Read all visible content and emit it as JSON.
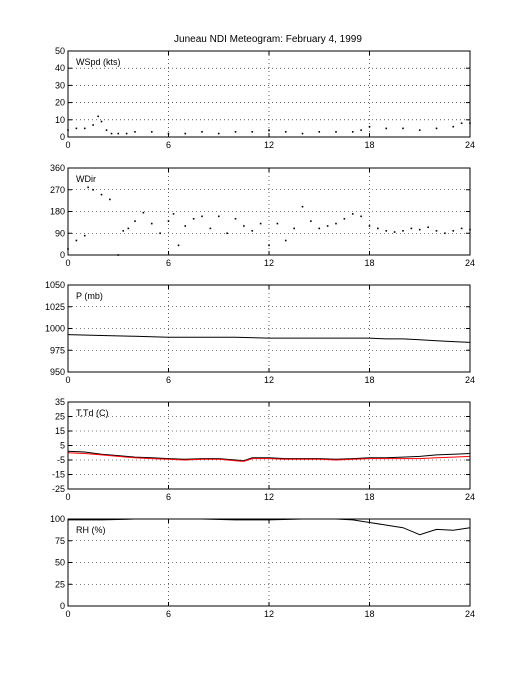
{
  "title": "Juneau NDI Meteogram:  February  4, 1999",
  "x_ticks": [
    "0",
    "6",
    "12",
    "18",
    "24"
  ],
  "chart_data": [
    {
      "type": "scatter",
      "label": "WSpd (kts)",
      "xlim": [
        0,
        24
      ],
      "ylim": [
        0,
        50
      ],
      "yticks": [
        0,
        10,
        20,
        30,
        40,
        50
      ],
      "grid": true,
      "series": [
        {
          "color": "#000000",
          "x": [
            0,
            0.5,
            1,
            1.5,
            1.8,
            2,
            2.3,
            2.6,
            3,
            3.5,
            4,
            5,
            6,
            7,
            8,
            9,
            10,
            11,
            12,
            13,
            14,
            15,
            16,
            17,
            17.5,
            18,
            19,
            20,
            21,
            22,
            23,
            23.5,
            24
          ],
          "y": [
            4,
            5,
            5,
            7,
            12,
            9,
            4,
            2,
            2,
            2,
            3,
            3,
            2,
            2,
            3,
            2,
            3,
            3,
            4,
            3,
            2,
            3,
            3,
            3,
            4,
            6,
            5,
            5,
            4,
            5,
            6,
            8,
            8
          ]
        }
      ]
    },
    {
      "type": "scatter",
      "label": "WDir",
      "xlim": [
        0,
        24
      ],
      "ylim": [
        0,
        360
      ],
      "yticks": [
        0,
        90,
        180,
        270,
        360
      ],
      "grid": true,
      "series": [
        {
          "color": "#000000",
          "x": [
            0,
            0.5,
            1,
            1.2,
            1.5,
            2,
            2.5,
            3,
            3.3,
            3.6,
            4,
            4.5,
            5,
            5.5,
            6,
            6.3,
            6.6,
            7,
            7.5,
            8,
            8.5,
            9,
            9.5,
            10,
            10.5,
            11,
            11.5,
            12,
            12.5,
            13,
            13.5,
            14,
            14.5,
            15,
            15.5,
            16,
            16.5,
            17,
            17.5,
            18,
            18.5,
            19,
            19.5,
            20,
            20.5,
            21,
            21.5,
            22,
            22.5,
            23,
            23.5,
            24
          ],
          "y": [
            25,
            60,
            80,
            280,
            270,
            250,
            230,
            0,
            100,
            110,
            140,
            175,
            130,
            90,
            140,
            170,
            40,
            120,
            150,
            160,
            110,
            160,
            90,
            150,
            120,
            100,
            130,
            40,
            130,
            60,
            110,
            200,
            140,
            110,
            120,
            130,
            150,
            170,
            160,
            120,
            110,
            100,
            95,
            100,
            110,
            105,
            115,
            100,
            90,
            100,
            110,
            105
          ]
        }
      ]
    },
    {
      "type": "line",
      "label": "P (mb)",
      "xlim": [
        0,
        24
      ],
      "ylim": [
        950,
        1050
      ],
      "yticks": [
        950,
        975,
        1000,
        1025,
        1050
      ],
      "grid": true,
      "series": [
        {
          "color": "#000000",
          "x": [
            0,
            2,
            4,
            6,
            8,
            10,
            12,
            14,
            16,
            18,
            19,
            20,
            21,
            22,
            23,
            24
          ],
          "y": [
            993,
            992,
            991,
            990,
            990,
            990,
            989,
            989,
            989,
            989,
            988,
            988,
            987,
            986,
            985,
            984
          ]
        }
      ]
    },
    {
      "type": "line",
      "label": "T,Td (C)",
      "xlim": [
        0,
        24
      ],
      "ylim": [
        -25,
        35
      ],
      "yticks": [
        -25,
        -15,
        -5,
        5,
        15,
        25,
        35
      ],
      "grid": true,
      "series": [
        {
          "color": "#000000",
          "x": [
            0,
            1,
            2,
            3,
            4,
            5,
            6,
            7,
            8,
            9,
            10,
            10.5,
            11,
            12,
            13,
            14,
            15,
            16,
            17,
            18,
            19,
            20,
            21,
            22,
            23,
            24
          ],
          "y": [
            1,
            0.5,
            -1,
            -2,
            -3,
            -3.5,
            -4,
            -4.5,
            -4,
            -4,
            -5,
            -5.5,
            -3.5,
            -3.5,
            -4,
            -4,
            -4,
            -4.5,
            -4,
            -3.5,
            -3.5,
            -3,
            -2.5,
            -1.5,
            -1,
            -0.5
          ]
        },
        {
          "color": "#ff0000",
          "x": [
            0,
            1,
            2,
            3,
            4,
            5,
            6,
            7,
            8,
            9,
            10,
            10.5,
            11,
            12,
            13,
            14,
            15,
            16,
            17,
            18,
            19,
            20,
            21,
            22,
            23,
            24
          ],
          "y": [
            0,
            -0.5,
            -1.5,
            -2.5,
            -3.5,
            -4,
            -4.5,
            -5,
            -4.5,
            -4.5,
            -5.5,
            -6,
            -4,
            -4,
            -4.5,
            -4.5,
            -4.5,
            -5,
            -4.5,
            -4,
            -4,
            -4,
            -4,
            -3.5,
            -3,
            -2.5
          ]
        }
      ]
    },
    {
      "type": "line",
      "label": "RH (%)",
      "xlim": [
        0,
        24
      ],
      "ylim": [
        0,
        100
      ],
      "yticks": [
        0,
        25,
        50,
        75,
        100
      ],
      "grid": true,
      "series": [
        {
          "color": "#000000",
          "x": [
            0,
            2,
            4,
            6,
            8,
            10,
            12,
            14,
            16,
            17,
            18,
            19,
            20,
            20.5,
            21,
            21.5,
            22,
            23,
            24
          ],
          "y": [
            99,
            99,
            100,
            100,
            100,
            99,
            99,
            100,
            100,
            99,
            96,
            93,
            90,
            86,
            82,
            85,
            88,
            87,
            90
          ]
        }
      ]
    }
  ]
}
